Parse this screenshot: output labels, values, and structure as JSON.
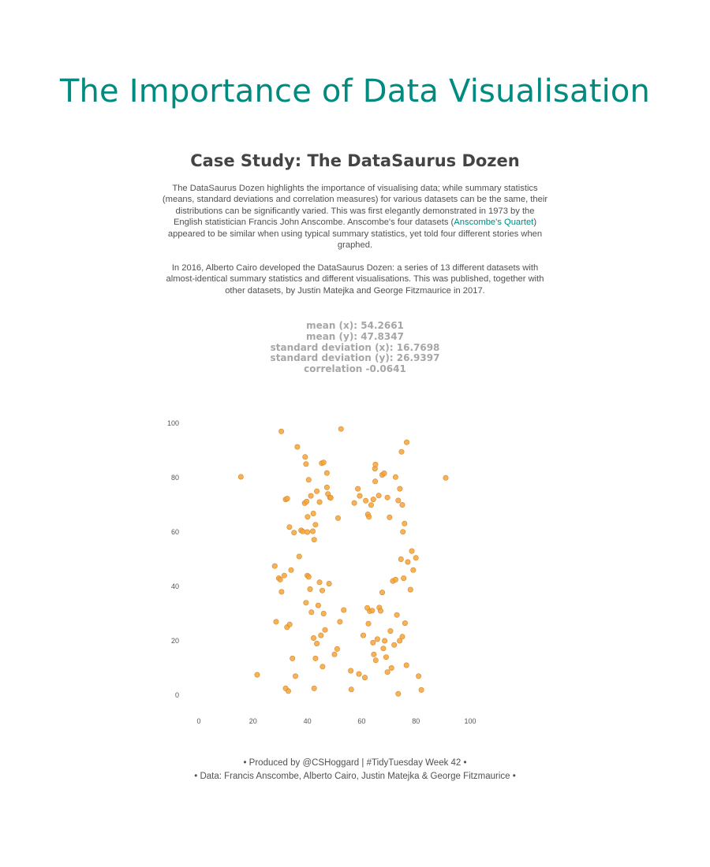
{
  "header": {
    "title": "The Importance of Data Visualisation",
    "case_study_title": "Case Study: The DataSaurus Dozen"
  },
  "intro": {
    "paragraph1_before": "The DataSaurus Dozen highlights the importance of visualising data; while summary statistics (means, standard deviations and correlation measures) for various datasets can be the same, their distributions can be significantly varied. This was first elegantly demonstrated in 1973 by the English statistician Francis John Anscombe. Anscombe's four datasets (",
    "paragraph1_link": "Anscombe's Quartet",
    "paragraph1_after": ") appeared to be similar when using typical summary statistics, yet told four different stories when graphed.",
    "paragraph2": "In 2016, Alberto Cairo developed the DataSaurus Dozen: a series of 13 different datasets with almost-identical summary statistics and different visualisations. This was published, together with other datasets, by Justin Matejka and George Fitzmaurice in 2017."
  },
  "stats": {
    "mean_x": "mean (x): 54.2661",
    "mean_y": "mean (y): 47.8347",
    "sd_x": "standard deviation (x): 16.7698",
    "sd_y": "standard deviation (y): 26.9397",
    "correlation": "correlation -0.0641"
  },
  "footer": {
    "line1": "• Produced by @CSHoggard  |  #TidyTuesday Week 42 •",
    "line2": "• Data: Francis Anscombe, Alberto Cairo, Justin Matejka & George Fitzmaurice •"
  },
  "chart_data": {
    "type": "scatter",
    "title": "",
    "xlabel": "",
    "ylabel": "",
    "xlim": [
      0,
      100
    ],
    "ylim": [
      0,
      100
    ],
    "x_ticks": [
      0,
      20,
      40,
      60,
      80,
      100
    ],
    "y_ticks": [
      0,
      20,
      40,
      60,
      80,
      100
    ],
    "grid": false,
    "point_color": "#f5a53a",
    "point_stroke": "#d9882a",
    "points": [
      [
        15.5,
        80.3
      ],
      [
        30.4,
        97.0
      ],
      [
        32.0,
        72.0
      ],
      [
        32.6,
        72.3
      ],
      [
        33.4,
        61.8
      ],
      [
        35.1,
        59.8
      ],
      [
        36.3,
        91.3
      ],
      [
        37.0,
        51.0
      ],
      [
        37.7,
        60.6
      ],
      [
        38.3,
        60.2
      ],
      [
        39.2,
        87.6
      ],
      [
        39.5,
        85.0
      ],
      [
        39.0,
        70.6
      ],
      [
        39.7,
        71.2
      ],
      [
        40.0,
        60.0
      ],
      [
        40.5,
        79.2
      ],
      [
        40.1,
        65.6
      ],
      [
        41.3,
        73.3
      ],
      [
        42.0,
        60.3
      ],
      [
        42.2,
        66.8
      ],
      [
        42.5,
        57.2
      ],
      [
        43.0,
        62.7
      ],
      [
        43.5,
        75.0
      ],
      [
        44.5,
        71.0
      ],
      [
        45.3,
        85.3
      ],
      [
        46.0,
        85.6
      ],
      [
        47.2,
        81.7
      ],
      [
        47.2,
        76.4
      ],
      [
        47.6,
        74.0
      ],
      [
        48.3,
        72.7
      ],
      [
        48.6,
        72.6
      ],
      [
        52.4,
        97.9
      ],
      [
        51.3,
        65.1
      ],
      [
        57.3,
        70.7
      ],
      [
        58.6,
        75.9
      ],
      [
        59.3,
        73.3
      ],
      [
        61.5,
        71.5
      ],
      [
        62.3,
        66.5
      ],
      [
        62.7,
        65.6
      ],
      [
        63.5,
        69.9
      ],
      [
        64.3,
        72.0
      ],
      [
        64.9,
        83.3
      ],
      [
        65.0,
        78.6
      ],
      [
        65.1,
        84.8
      ],
      [
        66.3,
        73.4
      ],
      [
        67.6,
        81.0
      ],
      [
        68.3,
        81.6
      ],
      [
        69.5,
        72.7
      ],
      [
        70.3,
        65.4
      ],
      [
        72.5,
        80.2
      ],
      [
        73.5,
        71.6
      ],
      [
        74.1,
        75.9
      ],
      [
        74.7,
        89.5
      ],
      [
        75.0,
        70.0
      ],
      [
        76.6,
        93.0
      ],
      [
        75.8,
        63.1
      ],
      [
        75.2,
        60.1
      ],
      [
        91.0,
        79.9
      ],
      [
        28.0,
        47.5
      ],
      [
        28.5,
        27.0
      ],
      [
        29.5,
        43.0
      ],
      [
        30.0,
        42.5
      ],
      [
        30.5,
        38.0
      ],
      [
        31.5,
        44.0
      ],
      [
        32.5,
        25.0
      ],
      [
        33.5,
        26.0
      ],
      [
        34.0,
        46.0
      ],
      [
        34.5,
        13.5
      ],
      [
        35.6,
        7.0
      ],
      [
        32.0,
        2.5
      ],
      [
        33.0,
        1.5
      ],
      [
        39.5,
        34.0
      ],
      [
        40.0,
        44.0
      ],
      [
        40.5,
        43.5
      ],
      [
        41.0,
        39.0
      ],
      [
        41.5,
        30.5
      ],
      [
        42.3,
        21.0
      ],
      [
        42.5,
        2.5
      ],
      [
        43.0,
        13.5
      ],
      [
        43.5,
        19.0
      ],
      [
        44.0,
        33.0
      ],
      [
        44.5,
        41.5
      ],
      [
        45.0,
        22.0
      ],
      [
        45.5,
        38.5
      ],
      [
        45.6,
        10.5
      ],
      [
        46.0,
        30.0
      ],
      [
        46.5,
        24.0
      ],
      [
        48.0,
        41.0
      ],
      [
        50.0,
        15.0
      ],
      [
        51.0,
        17.0
      ],
      [
        52.0,
        27.0
      ],
      [
        53.4,
        31.3
      ],
      [
        56.0,
        9.0
      ],
      [
        56.2,
        2.1
      ],
      [
        59.0,
        7.8
      ],
      [
        60.6,
        22.0
      ],
      [
        61.2,
        6.5
      ],
      [
        62.1,
        32.1
      ],
      [
        62.5,
        26.3
      ],
      [
        63.0,
        30.9
      ],
      [
        63.9,
        31.1
      ],
      [
        64.2,
        19.3
      ],
      [
        64.5,
        15.0
      ],
      [
        65.2,
        12.8
      ],
      [
        65.8,
        20.6
      ],
      [
        66.5,
        32.2
      ],
      [
        67.0,
        31.0
      ],
      [
        67.6,
        37.8
      ],
      [
        68.0,
        17.2
      ],
      [
        68.5,
        20.0
      ],
      [
        69.0,
        14.0
      ],
      [
        69.5,
        8.5
      ],
      [
        70.6,
        23.6
      ],
      [
        71.0,
        10.0
      ],
      [
        71.5,
        42.0
      ],
      [
        72.0,
        18.5
      ],
      [
        72.5,
        42.5
      ],
      [
        73.0,
        29.5
      ],
      [
        73.5,
        0.5
      ],
      [
        74.0,
        20.0
      ],
      [
        74.5,
        50.0
      ],
      [
        75.0,
        21.5
      ],
      [
        75.5,
        43.0
      ],
      [
        76.0,
        26.5
      ],
      [
        76.5,
        11.0
      ],
      [
        77.0,
        49.0
      ],
      [
        78.0,
        38.8
      ],
      [
        78.5,
        53.0
      ],
      [
        79.0,
        46.0
      ],
      [
        80.0,
        50.5
      ],
      [
        81.0,
        7.0
      ],
      [
        82.0,
        1.9
      ],
      [
        21.5,
        7.5
      ]
    ]
  }
}
